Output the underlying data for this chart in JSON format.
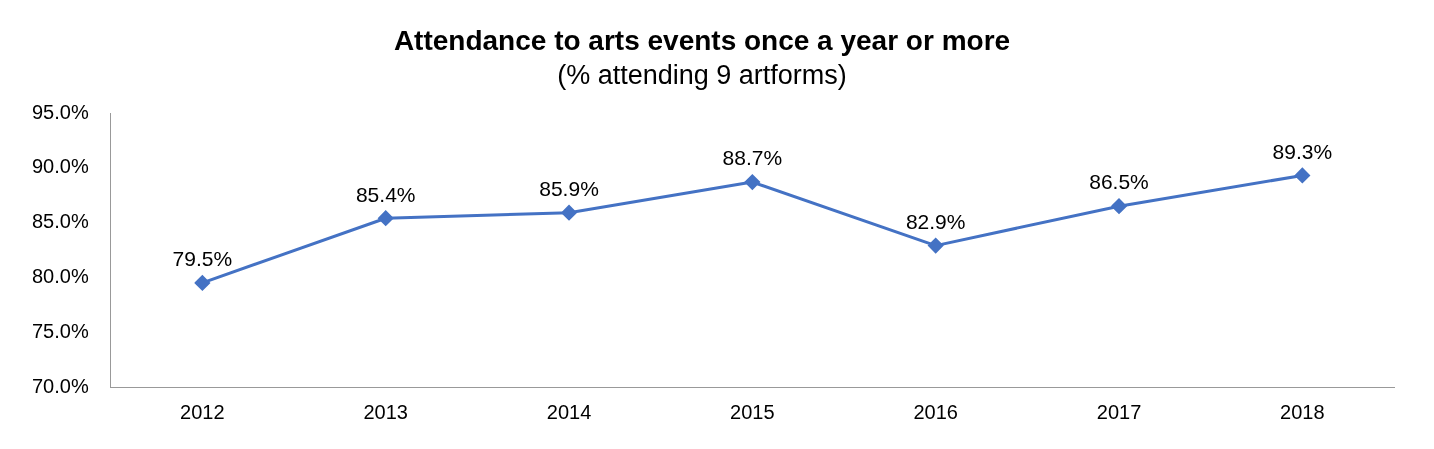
{
  "chart_data": {
    "type": "line",
    "title": "Attendance to arts events once a year or more",
    "subtitle": "(% attending 9 artforms)",
    "categories": [
      "2012",
      "2013",
      "2014",
      "2015",
      "2016",
      "2017",
      "2018"
    ],
    "values": [
      79.5,
      85.4,
      85.9,
      88.7,
      82.9,
      86.5,
      89.3
    ],
    "value_labels": [
      "79.5%",
      "85.4%",
      "85.9%",
      "88.7%",
      "82.9%",
      "86.5%",
      "89.3%"
    ],
    "color": "#4472c4",
    "marker": "diamond",
    "line_style": "solid",
    "grid": false,
    "legend": false,
    "ylim": [
      70,
      95
    ],
    "yticks": [
      {
        "value": 70,
        "label": "70.0%"
      },
      {
        "value": 75,
        "label": "75.0%"
      },
      {
        "value": 80,
        "label": "80.0%"
      },
      {
        "value": 85,
        "label": "85.0%"
      },
      {
        "value": 90,
        "label": "90.0%"
      },
      {
        "value": 95,
        "label": "95.0%"
      }
    ]
  }
}
